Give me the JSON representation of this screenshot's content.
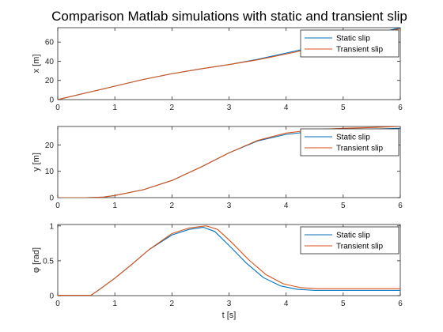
{
  "title": "Comparison Matlab simulations with static and transient slip",
  "colors": {
    "static": "#0072BD",
    "transient": "#D95319",
    "axis": "#262626"
  },
  "chart_data": [
    {
      "type": "line",
      "ylabel": "x [m]",
      "xlabel": "",
      "xlim": [
        0,
        6
      ],
      "ylim": [
        0,
        75
      ],
      "xticks": [
        "0",
        "1",
        "2",
        "3",
        "4",
        "5",
        "6"
      ],
      "yticks": [
        "0",
        "20",
        "40",
        "60"
      ],
      "ytick_values": [
        0,
        20,
        40,
        60
      ],
      "legend": [
        "Static slip",
        "Transient slip"
      ],
      "legend_position": "top-right",
      "series": [
        {
          "name": "Static slip",
          "x": [
            0,
            0.5,
            1,
            1.5,
            2,
            2.5,
            3,
            3.5,
            4,
            4.5,
            5,
            5.5,
            6
          ],
          "y": [
            0,
            7,
            14,
            21,
            27,
            32,
            36.5,
            42,
            48.5,
            55,
            61.5,
            68,
            75
          ]
        },
        {
          "name": "Transient slip",
          "x": [
            0,
            0.5,
            1,
            1.5,
            2,
            2.5,
            3,
            3.5,
            4,
            4.5,
            5,
            5.5,
            6
          ],
          "y": [
            0,
            7,
            14,
            21,
            27,
            32,
            36.5,
            41.5,
            47.5,
            54,
            60.5,
            67,
            74
          ]
        }
      ]
    },
    {
      "type": "line",
      "ylabel": "y [m]",
      "xlabel": "",
      "xlim": [
        0,
        6
      ],
      "ylim": [
        0,
        27
      ],
      "xticks": [
        "0",
        "1",
        "2",
        "3",
        "4",
        "5",
        "6"
      ],
      "yticks": [
        "0",
        "10",
        "20"
      ],
      "ytick_values": [
        0,
        10,
        20
      ],
      "legend": [
        "Static slip",
        "Transient slip"
      ],
      "legend_position": "top-right",
      "series": [
        {
          "name": "Static slip",
          "x": [
            0,
            0.5,
            0.8,
            1,
            1.5,
            2,
            2.5,
            3,
            3.5,
            4,
            4.5,
            5,
            5.5,
            6
          ],
          "y": [
            0,
            0,
            0.2,
            0.8,
            3,
            6.5,
            11.5,
            17,
            21.5,
            24,
            25.2,
            25.7,
            26,
            26.3
          ]
        },
        {
          "name": "Transient slip",
          "x": [
            0,
            0.5,
            0.8,
            1,
            1.5,
            2,
            2.5,
            3,
            3.5,
            4,
            4.5,
            5,
            5.5,
            6
          ],
          "y": [
            0,
            0,
            0.2,
            0.8,
            3,
            6.5,
            11.5,
            17,
            21.7,
            24.5,
            25.8,
            26.3,
            26.6,
            27
          ]
        }
      ]
    },
    {
      "type": "line",
      "ylabel": "φ [rad]",
      "xlabel": "t [s]",
      "xlim": [
        0,
        6
      ],
      "ylim": [
        0,
        1.02
      ],
      "xticks": [
        "0",
        "1",
        "2",
        "3",
        "4",
        "5",
        "6"
      ],
      "yticks": [
        "0",
        "0.5",
        "1"
      ],
      "ytick_values": [
        0,
        0.5,
        1
      ],
      "legend": [
        "Static slip",
        "Transient slip"
      ],
      "legend_position": "top-right",
      "series": [
        {
          "name": "Static slip",
          "x": [
            0,
            0.58,
            0.7,
            1,
            1.3,
            1.6,
            2,
            2.3,
            2.55,
            2.75,
            3,
            3.3,
            3.6,
            3.9,
            4.2,
            4.5,
            5,
            5.5,
            6
          ],
          "y": [
            0.005,
            0.005,
            0.07,
            0.25,
            0.45,
            0.66,
            0.87,
            0.95,
            0.98,
            0.92,
            0.72,
            0.47,
            0.26,
            0.14,
            0.09,
            0.075,
            0.075,
            0.075,
            0.075
          ]
        },
        {
          "name": "Transient slip",
          "x": [
            0,
            0.58,
            0.7,
            1,
            1.3,
            1.6,
            2,
            2.3,
            2.6,
            2.8,
            3.05,
            3.35,
            3.65,
            3.95,
            4.25,
            4.55,
            5,
            5.5,
            6
          ],
          "y": [
            0.005,
            0.005,
            0.07,
            0.25,
            0.45,
            0.66,
            0.89,
            0.97,
            1.0,
            0.95,
            0.76,
            0.51,
            0.3,
            0.17,
            0.115,
            0.1,
            0.1,
            0.1,
            0.1
          ]
        }
      ]
    }
  ]
}
